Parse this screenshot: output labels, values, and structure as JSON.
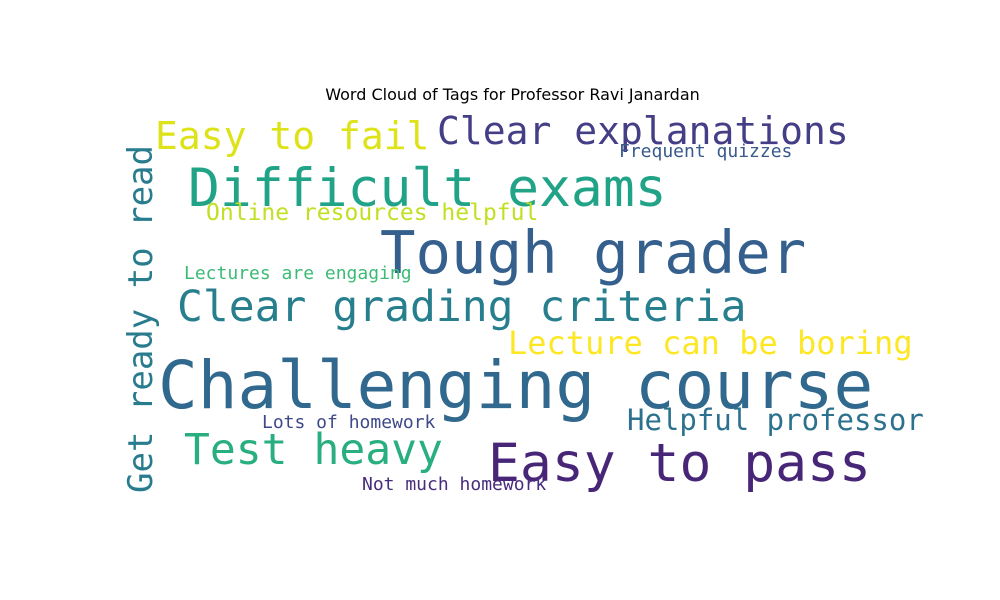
{
  "chart_data": {
    "type": "wordcloud",
    "title": "Word Cloud of Tags for Professor Ravi Janardan",
    "words": [
      {
        "text": "Challenging course",
        "weight": 100,
        "color": "#31688e",
        "orientation": "horizontal"
      },
      {
        "text": "Tough grader",
        "weight": 89,
        "color": "#355f8d",
        "orientation": "horizontal"
      },
      {
        "text": "Difficult exams",
        "weight": 80,
        "color": "#20a386",
        "orientation": "horizontal"
      },
      {
        "text": "Easy to pass",
        "weight": 80,
        "color": "#482677",
        "orientation": "horizontal"
      },
      {
        "text": "Clear grading criteria",
        "weight": 65,
        "color": "#277f8e",
        "orientation": "horizontal"
      },
      {
        "text": "Test heavy",
        "weight": 65,
        "color": "#29af7f",
        "orientation": "horizontal"
      },
      {
        "text": "Easy to fail",
        "weight": 58,
        "color": "#dde318",
        "orientation": "horizontal"
      },
      {
        "text": "Clear explanations",
        "weight": 58,
        "color": "#433e85",
        "orientation": "horizontal"
      },
      {
        "text": "Get ready to read",
        "weight": 52,
        "color": "#287c8e",
        "orientation": "vertical"
      },
      {
        "text": "Lecture can be boring",
        "weight": 48,
        "color": "#fde725",
        "orientation": "horizontal"
      },
      {
        "text": "Helpful professor",
        "weight": 44,
        "color": "#2c728e",
        "orientation": "horizontal"
      },
      {
        "text": "Online resources helpful",
        "weight": 35,
        "color": "#c2df23",
        "orientation": "horizontal"
      },
      {
        "text": "Frequent quizzes",
        "weight": 27,
        "color": "#38598c",
        "orientation": "horizontal"
      },
      {
        "text": "Lectures are engaging",
        "weight": 27,
        "color": "#3bbb75",
        "orientation": "horizontal"
      },
      {
        "text": "Lots of homework",
        "weight": 27,
        "color": "#3e4989",
        "orientation": "horizontal"
      },
      {
        "text": "Not much homework",
        "weight": 27,
        "color": "#472d7b",
        "orientation": "horizontal"
      }
    ]
  }
}
